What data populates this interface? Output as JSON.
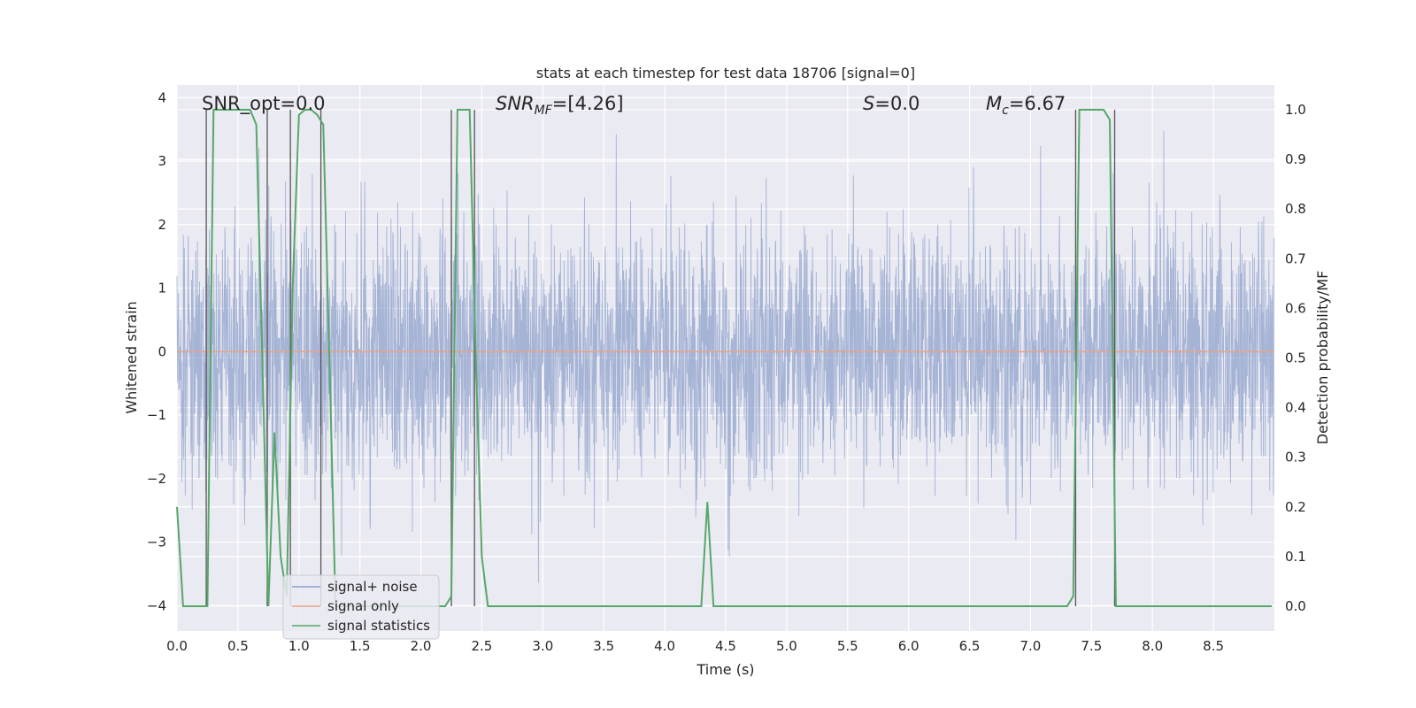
{
  "chart_data": {
    "type": "line",
    "title": "stats at each timestep for test data 18706 [signal=0]",
    "xlabel": "Time (s)",
    "ylabel_left": "Whitened strain",
    "ylabel_right": "Detection probability/MF",
    "xlim": [
      0.0,
      9.0
    ],
    "ylim_left": [
      -4.4,
      4.2
    ],
    "ylim_right": [
      -0.05,
      1.05
    ],
    "xticks": [
      "0.0",
      "0.5",
      "1.0",
      "1.5",
      "2.0",
      "2.5",
      "3.0",
      "3.5",
      "4.0",
      "4.5",
      "5.0",
      "5.5",
      "6.0",
      "6.5",
      "7.0",
      "7.5",
      "8.0",
      "8.5"
    ],
    "yticks_left": [
      "4",
      "3",
      "2",
      "1",
      "0",
      "−1",
      "−2",
      "−3",
      "−4"
    ],
    "yticks_right": [
      "1.0",
      "0.9",
      "0.8",
      "0.7",
      "0.6",
      "0.5",
      "0.4",
      "0.3",
      "0.2",
      "0.1",
      "0.0"
    ],
    "legend": {
      "position": "lower-left",
      "entries": [
        {
          "label": "signal+ noise",
          "color": "#8da0cb"
        },
        {
          "label": "signal only",
          "color": "#e8a387"
        },
        {
          "label": "signal statistics",
          "color": "#55a868"
        }
      ]
    },
    "annotations": {
      "snr_opt": "SNR_opt=0.0",
      "snr_mf_base": "SNR",
      "snr_mf_sub": "MF",
      "snr_mf_value": "=[4.26]",
      "s_base": "S",
      "s_value": "=0.0",
      "mc_base": "M",
      "mc_sub": "c",
      "mc_value": "=6.67"
    },
    "series": [
      {
        "name": "signal+ noise",
        "axis": "left",
        "kind": "noise",
        "seed": 18706,
        "sigma": 1.0,
        "points_per_second": 400
      },
      {
        "name": "signal only",
        "axis": "left",
        "kind": "constant",
        "value": 0.0
      },
      {
        "name": "signal statistics",
        "axis": "right",
        "x": [
          0.0,
          0.05,
          0.1,
          0.15,
          0.2,
          0.25,
          0.3,
          0.35,
          0.4,
          0.45,
          0.5,
          0.55,
          0.6,
          0.65,
          0.7,
          0.75,
          0.8,
          0.85,
          0.9,
          0.95,
          1.0,
          1.05,
          1.1,
          1.15,
          1.2,
          1.25,
          1.3,
          1.35,
          1.4,
          2.0,
          2.05,
          2.1,
          2.15,
          2.2,
          2.25,
          2.3,
          2.35,
          2.4,
          2.45,
          2.5,
          2.55,
          2.6,
          4.25,
          4.3,
          4.35,
          4.4,
          4.45,
          4.5,
          7.3,
          7.35,
          7.4,
          7.45,
          7.5,
          7.55,
          7.6,
          7.65,
          7.7,
          7.75,
          7.8,
          7.85,
          8.98
        ],
        "y": [
          0.2,
          0.0,
          0.0,
          0.0,
          0.0,
          0.0,
          1.0,
          1.0,
          1.0,
          1.0,
          1.0,
          1.0,
          1.0,
          0.97,
          0.5,
          0.0,
          0.35,
          0.1,
          0.02,
          0.65,
          0.99,
          1.0,
          1.0,
          0.99,
          0.97,
          0.5,
          0.0,
          0.0,
          0.0,
          0.0,
          0.0,
          0.0,
          0.0,
          0.0,
          0.02,
          1.0,
          1.0,
          1.0,
          0.5,
          0.1,
          0.0,
          0.0,
          0.0,
          0.0,
          0.21,
          0.0,
          0.0,
          0.0,
          0.0,
          0.02,
          1.0,
          1.0,
          1.0,
          1.0,
          1.0,
          0.98,
          0.0,
          0.0,
          0.0,
          0.0,
          0.0
        ]
      }
    ],
    "vlines": [
      0.24,
      0.74,
      0.93,
      1.18,
      2.25,
      2.44,
      7.37,
      7.69
    ],
    "vline_range_right": [
      0.0,
      1.0
    ]
  }
}
